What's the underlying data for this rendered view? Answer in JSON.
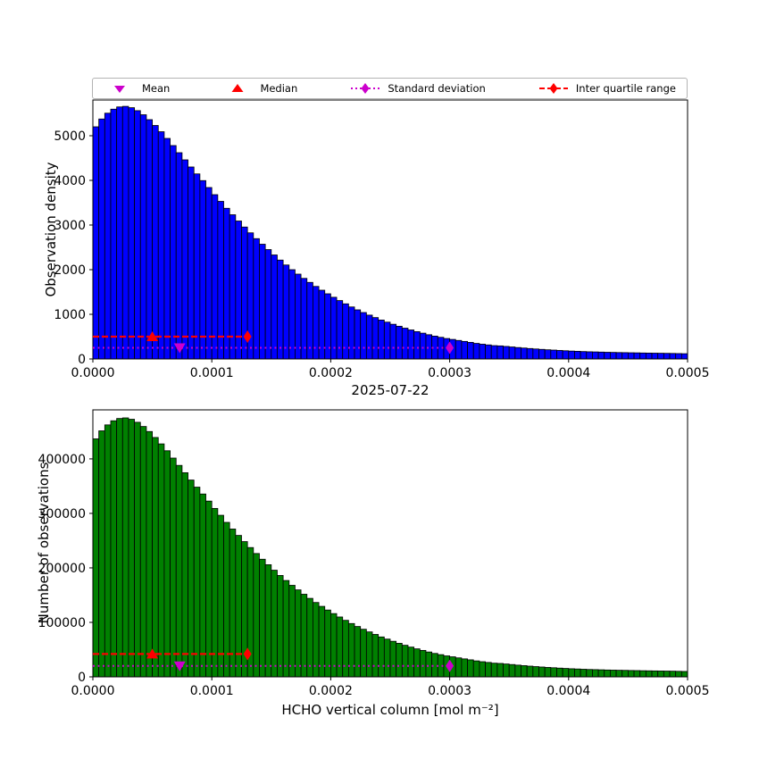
{
  "colors": {
    "magenta": "#cc00cc",
    "red": "#ff0000",
    "blue_bar": "#0000ff",
    "green_bar": "#008000",
    "edge": "#000000",
    "frame": "#000000"
  },
  "legend": {
    "items": [
      {
        "label": "Mean",
        "marker": "triangle-down",
        "line": "none",
        "color": "#cc00cc"
      },
      {
        "label": "Median",
        "marker": "triangle-up",
        "line": "none",
        "color": "#ff0000"
      },
      {
        "label": "Standard deviation",
        "marker": "diamond",
        "line": "dotted",
        "color": "#cc00cc"
      },
      {
        "label": "Inter quartile range",
        "marker": "diamond",
        "line": "dashed",
        "color": "#ff0000"
      }
    ]
  },
  "chart_data": [
    {
      "type": "bar",
      "title": "",
      "xlabel": "2025-07-22",
      "ylabel": "Observation density",
      "bar_color": "#0000ff",
      "edge_color": "#000000",
      "xlim": [
        0,
        0.0005
      ],
      "ylim": [
        0,
        5800
      ],
      "grid": false,
      "legend_position": "top-outside",
      "xticks": [
        0,
        0.0001,
        0.0002,
        0.0003,
        0.0004,
        0.0005
      ],
      "xtick_labels": [
        "0.0000",
        "0.0001",
        "0.0002",
        "0.0003",
        "0.0004",
        "0.0005"
      ],
      "yticks": [
        0,
        1000,
        2000,
        3000,
        4000,
        5000
      ],
      "bin_start": 0,
      "bin_width": 5e-06,
      "values": [
        5200,
        5375,
        5505,
        5595,
        5645,
        5658,
        5628,
        5562,
        5470,
        5360,
        5230,
        5090,
        4940,
        4780,
        4620,
        4460,
        4300,
        4145,
        3995,
        3840,
        3680,
        3530,
        3375,
        3230,
        3090,
        2955,
        2825,
        2695,
        2570,
        2450,
        2330,
        2215,
        2105,
        2000,
        1900,
        1805,
        1715,
        1625,
        1540,
        1460,
        1382,
        1308,
        1235,
        1165,
        1100,
        1040,
        982,
        927,
        872,
        825,
        777,
        733,
        690,
        650,
        612,
        578,
        543,
        512,
        485,
        458,
        438,
        415,
        393,
        372,
        349,
        331,
        315,
        299,
        293,
        281,
        269,
        256,
        245,
        234,
        224,
        215,
        206,
        199,
        191,
        184,
        177,
        172,
        166,
        161,
        158,
        154,
        150,
        147,
        144,
        142,
        139,
        137,
        134,
        132,
        130,
        128,
        126,
        124,
        121,
        118
      ],
      "markers": {
        "mean": {
          "x": 7.3e-05,
          "y": 250
        },
        "median": {
          "x": 5e-05,
          "y": 500
        },
        "std_line": {
          "x0": 0,
          "x1": 0.0003,
          "y": 250,
          "diamond_x": 0.0003
        },
        "iqr_line": {
          "x0": 0,
          "x1": 0.00013,
          "y": 500,
          "diamond_x": 0.00013
        }
      }
    },
    {
      "type": "bar",
      "title": "",
      "xlabel": "HCHO vertical column [mol m⁻²]",
      "ylabel": "Number of observations",
      "bar_color": "#008000",
      "edge_color": "#000000",
      "xlim": [
        0,
        0.0005
      ],
      "ylim": [
        0,
        490000
      ],
      "grid": false,
      "legend_position": "none",
      "xticks": [
        0,
        0.0001,
        0.0002,
        0.0003,
        0.0004,
        0.0005
      ],
      "xtick_labels": [
        "0.0000",
        "0.0001",
        "0.0002",
        "0.0003",
        "0.0004",
        "0.0005"
      ],
      "yticks": [
        0,
        100000,
        200000,
        300000,
        400000
      ],
      "bin_start": 0,
      "bin_width": 5e-06,
      "values": [
        436800,
        451500,
        462420,
        469980,
        474180,
        475272,
        472752,
        467208,
        459480,
        450240,
        439320,
        427560,
        414960,
        401520,
        388080,
        374640,
        361200,
        348180,
        335580,
        322560,
        309120,
        296520,
        283500,
        271320,
        259560,
        248220,
        237300,
        226380,
        215880,
        205800,
        195720,
        186060,
        176820,
        168000,
        159600,
        151620,
        144060,
        136500,
        129360,
        122640,
        116088,
        109872,
        103740,
        97860,
        92400,
        87360,
        82488,
        77868,
        73248,
        69300,
        65268,
        61572,
        57960,
        54600,
        51408,
        48552,
        45612,
        43008,
        40740,
        38472,
        36792,
        34860,
        33012,
        31248,
        29316,
        27804,
        26460,
        25116,
        24612,
        23604,
        22596,
        21504,
        20580,
        19656,
        18816,
        18060,
        17304,
        16716,
        16044,
        15456,
        14868,
        14448,
        13944,
        13524,
        13272,
        12936,
        12600,
        12348,
        12096,
        11928,
        11676,
        11508,
        11256,
        11088,
        10920,
        10752,
        10584,
        10416,
        10164,
        9912
      ],
      "markers": {
        "mean": {
          "x": 7.3e-05,
          "y": 20000
        },
        "median": {
          "x": 5e-05,
          "y": 42000
        },
        "std_line": {
          "x0": 0,
          "x1": 0.0003,
          "y": 20000,
          "diamond_x": 0.0003
        },
        "iqr_line": {
          "x0": 0,
          "x1": 0.00013,
          "y": 42000,
          "diamond_x": 0.00013
        }
      }
    }
  ]
}
